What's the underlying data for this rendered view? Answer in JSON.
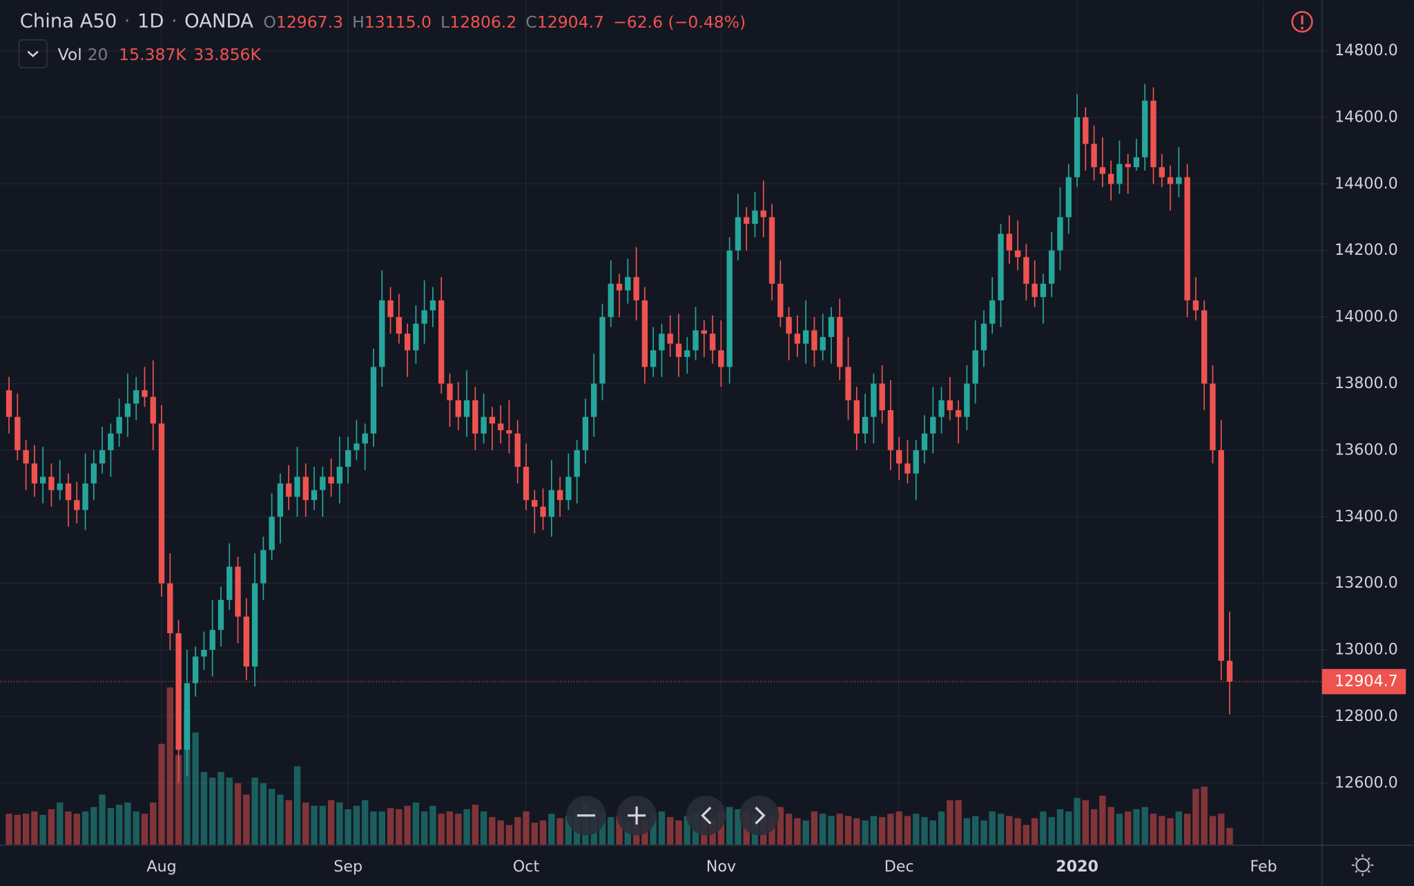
{
  "chart_data": {
    "type": "candlestick",
    "title": "China A50",
    "interval": "1D",
    "source": "OANDA",
    "header": [
      {
        "key": "O",
        "value": "12967.3"
      },
      {
        "key": "H",
        "value": "13115.0"
      },
      {
        "key": "L",
        "value": "12806.2"
      },
      {
        "key": "C",
        "value": "12904.7"
      }
    ],
    "header_change": "−62.6 (−0.48%)",
    "volume_legend": {
      "name": "Vol",
      "period": 20,
      "values": [
        "15.387K",
        "33.856K"
      ]
    },
    "up_color": "#26a69a",
    "down_color": "#ef5350",
    "grid": true,
    "ylim": [
      12413,
      14952
    ],
    "yticks": [
      {
        "value": 12600,
        "label": "12600.0"
      },
      {
        "value": 12800,
        "label": "12800.0"
      },
      {
        "value": 13000,
        "label": "13000.0"
      },
      {
        "value": 13200,
        "label": "13200.0"
      },
      {
        "value": 13400,
        "label": "13400.0"
      },
      {
        "value": 13600,
        "label": "13600.0"
      },
      {
        "value": 13800,
        "label": "13800.0"
      },
      {
        "value": 14000,
        "label": "14000.0"
      },
      {
        "value": 14200,
        "label": "14200.0"
      },
      {
        "value": 14400,
        "label": "14400.0"
      },
      {
        "value": 14600,
        "label": "14600.0"
      },
      {
        "value": 14800,
        "label": "14800.0"
      }
    ],
    "categories": [
      null,
      null,
      null,
      null,
      null,
      null,
      null,
      null,
      null,
      null,
      null,
      null,
      null,
      null,
      null,
      null,
      null,
      null,
      "Aug",
      null,
      null,
      null,
      null,
      null,
      null,
      null,
      null,
      null,
      null,
      null,
      null,
      null,
      null,
      null,
      null,
      null,
      null,
      null,
      null,
      null,
      "Sep",
      null,
      null,
      null,
      null,
      null,
      null,
      null,
      null,
      null,
      null,
      null,
      null,
      null,
      null,
      null,
      null,
      null,
      null,
      null,
      null,
      "Oct",
      null,
      null,
      null,
      null,
      null,
      null,
      null,
      null,
      null,
      null,
      null,
      null,
      null,
      null,
      null,
      null,
      null,
      null,
      null,
      null,
      null,
      null,
      "Nov",
      null,
      null,
      null,
      null,
      null,
      null,
      null,
      null,
      null,
      null,
      null,
      null,
      null,
      null,
      null,
      null,
      null,
      null,
      null,
      null,
      "Dec",
      null,
      null,
      null,
      null,
      null,
      null,
      null,
      null,
      null,
      null,
      null,
      null,
      null,
      null,
      null,
      null,
      null,
      null,
      null,
      null,
      "2020",
      null,
      null,
      null,
      null,
      null,
      null,
      null,
      null,
      null,
      null,
      null,
      null,
      null,
      null,
      null,
      null,
      null,
      null,
      null,
      null,
      null,
      "Feb"
    ],
    "open": [
      13780,
      13700,
      13600,
      13560,
      13500,
      13520,
      13480,
      13500,
      13450,
      13420,
      13500,
      13560,
      13600,
      13650,
      13700,
      13740,
      13780,
      13760,
      13680,
      13200,
      13050,
      12700,
      12900,
      12980,
      13000,
      13060,
      13150,
      13250,
      13100,
      12950,
      13200,
      13300,
      13400,
      13500,
      13460,
      13520,
      13450,
      13480,
      13520,
      13500,
      13550,
      13600,
      13620,
      13650,
      13850,
      14050,
      14000,
      13950,
      13900,
      13980,
      14020,
      14050,
      13800,
      13750,
      13700,
      13750,
      13650,
      13700,
      13680,
      13660,
      13650,
      13550,
      13450,
      13430,
      13400,
      13480,
      13450,
      13520,
      13600,
      13700,
      13800,
      14000,
      14100,
      14080,
      14120,
      14050,
      13850,
      13900,
      13950,
      13920,
      13880,
      13900,
      13960,
      13950,
      13900,
      13850,
      14200,
      14300,
      14280,
      14320,
      14300,
      14100,
      14000,
      13950,
      13920,
      13960,
      13900,
      13940,
      14000,
      13850,
      13750,
      13650,
      13700,
      13800,
      13720,
      13600,
      13560,
      13530,
      13600,
      13650,
      13700,
      13750,
      13720,
      13700,
      13800,
      13900,
      13980,
      14050,
      14250,
      14200,
      14180,
      14100,
      14060,
      14100,
      14200,
      14300,
      14420,
      14600,
      14520,
      14450,
      14430,
      14400,
      14460,
      14450,
      14480,
      14650,
      14450,
      14420,
      14400,
      14420,
      14050,
      14020,
      13800,
      13600,
      12967.3,
      null,
      null,
      null,
      null
    ],
    "high": [
      13820,
      13770,
      13630,
      13615,
      13610,
      13560,
      13570,
      13530,
      13505,
      13590,
      13600,
      13670,
      13680,
      13755,
      13830,
      13820,
      13850,
      13870,
      13735,
      13290,
      13090,
      13000,
      13010,
      13055,
      13150,
      13190,
      13320,
      13280,
      13155,
      13290,
      13340,
      13470,
      13530,
      13555,
      13610,
      13560,
      13550,
      13550,
      13575,
      13640,
      13640,
      13690,
      13680,
      13905,
      14140,
      14090,
      14070,
      13980,
      14035,
      14110,
      14090,
      14120,
      13830,
      13805,
      13840,
      13790,
      13770,
      13730,
      13735,
      13750,
      13690,
      13620,
      13480,
      13485,
      13570,
      13520,
      13590,
      13630,
      13755,
      13890,
      14040,
      14170,
      14130,
      14175,
      14210,
      14090,
      13970,
      13980,
      14005,
      14010,
      13940,
      14030,
      13990,
      14005,
      13990,
      14240,
      14370,
      14330,
      14375,
      14410,
      14340,
      14170,
      14030,
      14005,
      14050,
      14000,
      14010,
      14030,
      14055,
      13940,
      13790,
      13770,
      13830,
      13855,
      13810,
      13640,
      13630,
      13630,
      13705,
      13790,
      13790,
      13820,
      13750,
      13855,
      13990,
      14020,
      14120,
      14280,
      14305,
      14290,
      14220,
      14170,
      14130,
      14255,
      14390,
      14460,
      14670,
      14630,
      14575,
      14540,
      14470,
      14530,
      14490,
      14535,
      14700,
      14690,
      14490,
      14455,
      14510,
      14460,
      14120,
      14050,
      13855,
      13690,
      13115,
      null,
      null,
      null,
      null
    ],
    "low": [
      13650,
      13570,
      13480,
      13460,
      13440,
      13430,
      13450,
      13370,
      13380,
      13360,
      13450,
      13530,
      13520,
      13610,
      13640,
      13690,
      13730,
      13600,
      13160,
      13000,
      12600,
      12620,
      12860,
      12940,
      12920,
      13010,
      13120,
      13020,
      12910,
      12890,
      13150,
      13270,
      13320,
      13420,
      13400,
      13400,
      13420,
      13400,
      13460,
      13440,
      13500,
      13570,
      13540,
      13610,
      13790,
      13950,
      13920,
      13820,
      13860,
      13920,
      13970,
      13770,
      13670,
      13660,
      13640,
      13600,
      13620,
      13600,
      13620,
      13590,
      13500,
      13420,
      13350,
      13360,
      13340,
      13400,
      13420,
      13440,
      13560,
      13640,
      13750,
      13970,
      14000,
      14040,
      13990,
      13800,
      13820,
      13820,
      13880,
      13820,
      13830,
      13870,
      13880,
      13860,
      13790,
      13800,
      14170,
      14200,
      14240,
      14240,
      14050,
      13970,
      13870,
      13880,
      13860,
      13850,
      13870,
      13860,
      13810,
      13690,
      13600,
      13620,
      13620,
      13680,
      13540,
      13510,
      13500,
      13450,
      13560,
      13590,
      13650,
      13690,
      13620,
      13660,
      13740,
      13850,
      13950,
      13970,
      14160,
      14140,
      14050,
      14030,
      13980,
      14060,
      14140,
      14250,
      14390,
      14440,
      14410,
      14390,
      14350,
      14370,
      14370,
      14440,
      14440,
      14400,
      14390,
      14320,
      14360,
      14000,
      13990,
      13720,
      13560,
      12910,
      12806.2,
      null,
      null,
      null,
      null
    ],
    "close": [
      13700,
      13600,
      13560,
      13500,
      13520,
      13480,
      13500,
      13450,
      13420,
      13500,
      13560,
      13600,
      13650,
      13700,
      13740,
      13780,
      13760,
      13680,
      13200,
      13050,
      12700,
      12900,
      12980,
      13000,
      13060,
      13150,
      13250,
      13100,
      12950,
      13200,
      13300,
      13400,
      13500,
      13460,
      13520,
      13450,
      13480,
      13520,
      13500,
      13550,
      13600,
      13620,
      13650,
      13850,
      14050,
      14000,
      13950,
      13900,
      13980,
      14020,
      14050,
      13800,
      13750,
      13700,
      13750,
      13650,
      13700,
      13680,
      13660,
      13650,
      13550,
      13450,
      13430,
      13400,
      13480,
      13450,
      13520,
      13600,
      13700,
      13800,
      14000,
      14100,
      14080,
      14120,
      14050,
      13850,
      13900,
      13950,
      13920,
      13880,
      13900,
      13960,
      13950,
      13900,
      13850,
      14200,
      14300,
      14280,
      14320,
      14300,
      14100,
      14000,
      13950,
      13920,
      13960,
      13900,
      13940,
      14000,
      13850,
      13750,
      13650,
      13700,
      13800,
      13720,
      13600,
      13560,
      13530,
      13600,
      13650,
      13700,
      13750,
      13720,
      13700,
      13800,
      13900,
      13980,
      14050,
      14250,
      14200,
      14180,
      14100,
      14060,
      14100,
      14200,
      14300,
      14420,
      14600,
      14520,
      14450,
      14430,
      14400,
      14460,
      14450,
      14480,
      14650,
      14450,
      14420,
      14400,
      14420,
      14050,
      14020,
      13800,
      13600,
      12967.3,
      12904.7,
      null,
      null,
      null,
      null
    ],
    "volume": [
      28000,
      27000,
      28000,
      30000,
      27000,
      32000,
      38000,
      30000,
      28000,
      30000,
      34000,
      45000,
      33000,
      36000,
      38000,
      30000,
      28000,
      38000,
      90000,
      140000,
      80000,
      120000,
      100000,
      65000,
      60000,
      65000,
      60000,
      55000,
      45000,
      60000,
      55000,
      50000,
      45000,
      40000,
      70000,
      38000,
      35000,
      35000,
      40000,
      38000,
      32000,
      35000,
      40000,
      30000,
      30000,
      33000,
      32000,
      35000,
      38000,
      30000,
      35000,
      28000,
      30000,
      28000,
      32000,
      36000,
      30000,
      25000,
      22000,
      18000,
      25000,
      30000,
      20000,
      22000,
      28000,
      24000,
      26000,
      30000,
      38000,
      32000,
      28000,
      25000,
      26000,
      20000,
      24000,
      22000,
      28000,
      30000,
      25000,
      22000,
      26000,
      28000,
      24000,
      24000,
      30000,
      34000,
      32000,
      30000,
      28000,
      30000,
      26000,
      34000,
      28000,
      24000,
      22000,
      30000,
      28000,
      26000,
      28000,
      26000,
      24000,
      22000,
      26000,
      25000,
      28000,
      30000,
      26000,
      28000,
      25000,
      22000,
      30000,
      40000,
      40000,
      24000,
      26000,
      22000,
      30000,
      28000,
      26000,
      24000,
      18000,
      24000,
      30000,
      25000,
      32000,
      30000,
      42000,
      40000,
      32000,
      44000,
      34000,
      28000,
      30000,
      32000,
      34000,
      28000,
      26000,
      24000,
      30000,
      28000,
      50000,
      52000,
      26000,
      28000,
      15387,
      null,
      null,
      null,
      null
    ]
  }
}
